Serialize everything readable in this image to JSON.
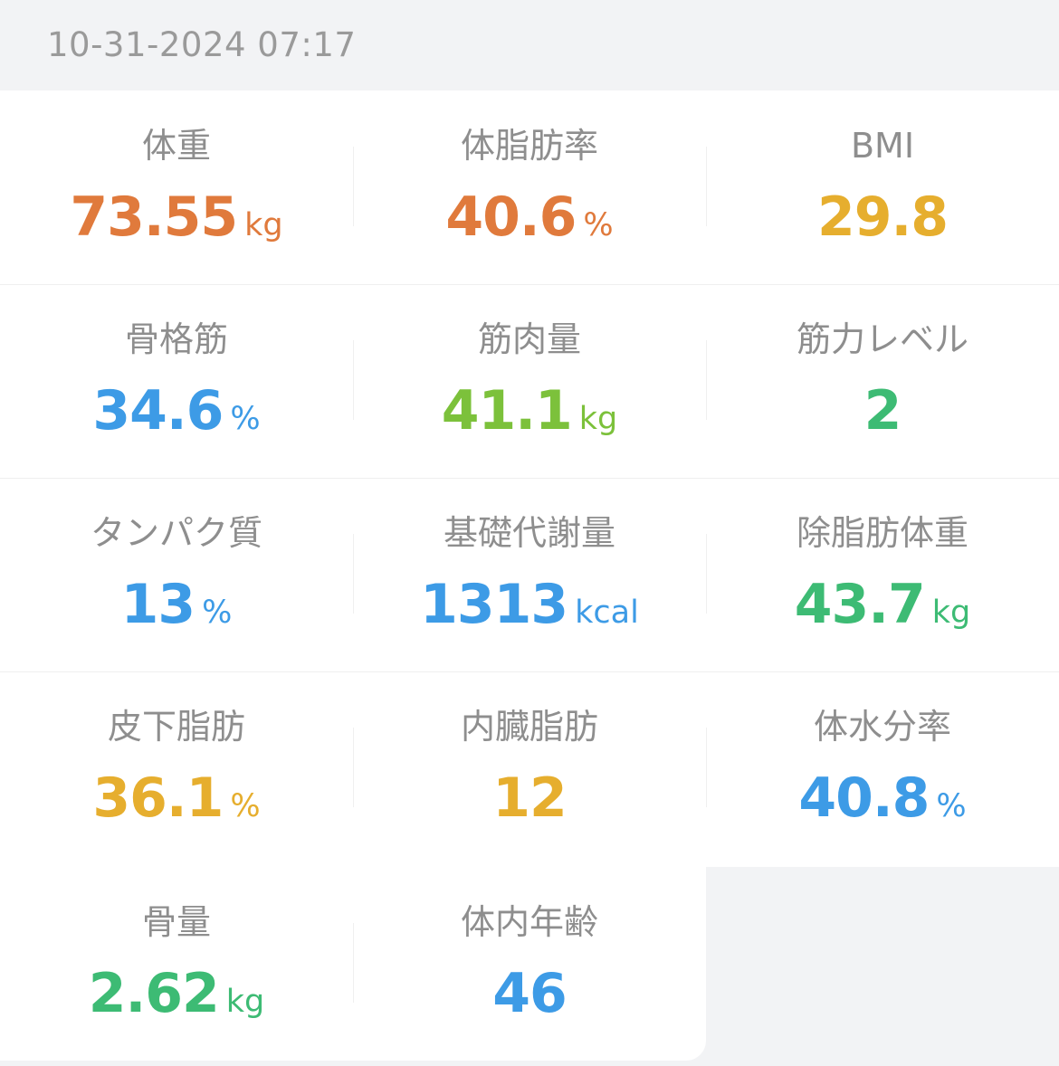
{
  "header": {
    "timestamp": "10-31-2024 07:17"
  },
  "colors": {
    "orange": "#e07a3c",
    "yellow": "#e6ae2e",
    "blue": "#3d9be6",
    "green_light": "#7cc13b",
    "green": "#3dbb74",
    "label_gray": "#8e8e8e"
  },
  "metrics": [
    {
      "label": "体重",
      "value": "73.55",
      "unit": "kg",
      "color": "#e07a3c"
    },
    {
      "label": "体脂肪率",
      "value": "40.6",
      "unit": "%",
      "color": "#e07a3c"
    },
    {
      "label": "BMI",
      "value": "29.8",
      "unit": "",
      "color": "#e6ae2e"
    },
    {
      "label": "骨格筋",
      "value": "34.6",
      "unit": "%",
      "color": "#3d9be6"
    },
    {
      "label": "筋肉量",
      "value": "41.1",
      "unit": "kg",
      "color": "#7cc13b"
    },
    {
      "label": "筋力レベル",
      "value": "2",
      "unit": "",
      "color": "#3dbb74"
    },
    {
      "label": "タンパク質",
      "value": "13",
      "unit": "%",
      "color": "#3d9be6"
    },
    {
      "label": "基礎代謝量",
      "value": "1313",
      "unit": "kcal",
      "color": "#3d9be6"
    },
    {
      "label": "除脂肪体重",
      "value": "43.7",
      "unit": "kg",
      "color": "#3dbb74"
    },
    {
      "label": "皮下脂肪",
      "value": "36.1",
      "unit": "%",
      "color": "#e6ae2e"
    },
    {
      "label": "内臓脂肪",
      "value": "12",
      "unit": "",
      "color": "#e6ae2e"
    },
    {
      "label": "体水分率",
      "value": "40.8",
      "unit": "%",
      "color": "#3d9be6"
    },
    {
      "label": "骨量",
      "value": "2.62",
      "unit": "kg",
      "color": "#3dbb74"
    },
    {
      "label": "体内年齢",
      "value": "46",
      "unit": "",
      "color": "#3d9be6"
    }
  ]
}
